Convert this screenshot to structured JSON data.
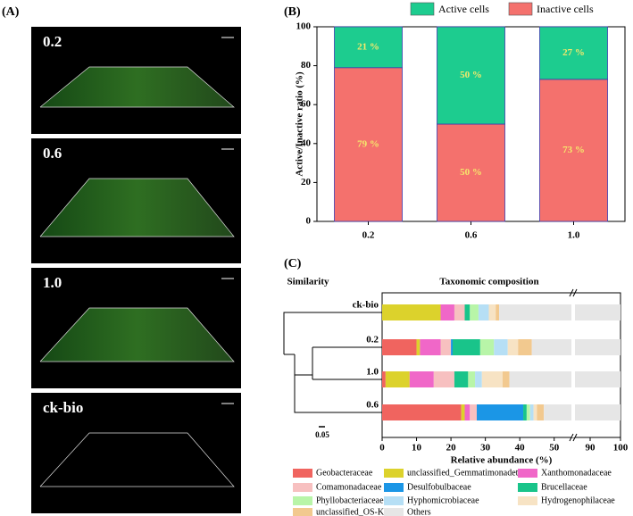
{
  "panel_labels": [
    "(A)",
    "(B)",
    "(C)"
  ],
  "images": [
    {
      "label": "0.2"
    },
    {
      "label": "0.6"
    },
    {
      "label": "1.0"
    },
    {
      "label": "ck-bio"
    }
  ],
  "chart_data": [
    {
      "type": "stacked-bar",
      "ylabel": "Active/Inactive ratio (%)",
      "categories": [
        "0.2",
        "0.6",
        "1.0"
      ],
      "series": [
        {
          "name": "Active cells",
          "color": "#1dcc8f",
          "values": [
            21,
            50,
            27
          ],
          "value_labels": [
            "21 %",
            "50 %",
            "27 %"
          ]
        },
        {
          "name": "Inactive cells",
          "color": "#f4716d",
          "values": [
            79,
            50,
            73
          ],
          "value_labels": [
            "79 %",
            "50 %",
            "73 %"
          ]
        }
      ],
      "ylim": [
        0,
        100
      ],
      "yticks": [
        0,
        20,
        40,
        60,
        80,
        100
      ],
      "label_color": "#f5e86c"
    },
    {
      "type": "stacked-barh",
      "title": "Taxonomic composition",
      "dendrogram_label": "Similarity",
      "scale_label": "0.05",
      "xlabel": "Relative abundance (%)",
      "categories": [
        "ck-bio",
        "0.2",
        "1.0",
        "0.6"
      ],
      "series": [
        {
          "name": "Geobacteraceae",
          "color": "#f0645f",
          "values": [
            0,
            10,
            1,
            23
          ]
        },
        {
          "name": "unclassified_Gemmatimonadetes",
          "color": "#dcd22c",
          "values": [
            17,
            1,
            7,
            1
          ]
        },
        {
          "name": "Xanthomonadaceae",
          "color": "#f067c8",
          "values": [
            4,
            6,
            7,
            1.5
          ]
        },
        {
          "name": "Comamonadaceae",
          "color": "#f7c0c0",
          "values": [
            3,
            3,
            6,
            2
          ]
        },
        {
          "name": "Desulfobulbaceae",
          "color": "#1b96e6",
          "values": [
            0,
            0.5,
            0,
            13.5
          ]
        },
        {
          "name": "Brucellaceae",
          "color": "#19c48a",
          "values": [
            1.5,
            8,
            4,
            1
          ]
        },
        {
          "name": "Phyllobacteriaceae",
          "color": "#b8f5a8",
          "values": [
            2.5,
            4,
            2,
            1
          ]
        },
        {
          "name": "Hyphomicrobiaceae",
          "color": "#b6dff5",
          "values": [
            3,
            4,
            2,
            1
          ]
        },
        {
          "name": "Hydrogenophilaceae",
          "color": "#f7e3c4",
          "values": [
            2,
            3,
            6,
            1
          ]
        },
        {
          "name": "unclassified_OS-K",
          "color": "#f2c98f",
          "values": [
            1,
            4,
            2,
            2
          ]
        },
        {
          "name": "Others",
          "color": "#e6e6e6",
          "values": [
            66,
            56.5,
            63,
            53
          ]
        }
      ],
      "xlim": [
        0,
        100
      ],
      "xticks": [
        0,
        10,
        20,
        30,
        40,
        50,
        90,
        100
      ],
      "axis_break": [
        55,
        85
      ]
    }
  ]
}
